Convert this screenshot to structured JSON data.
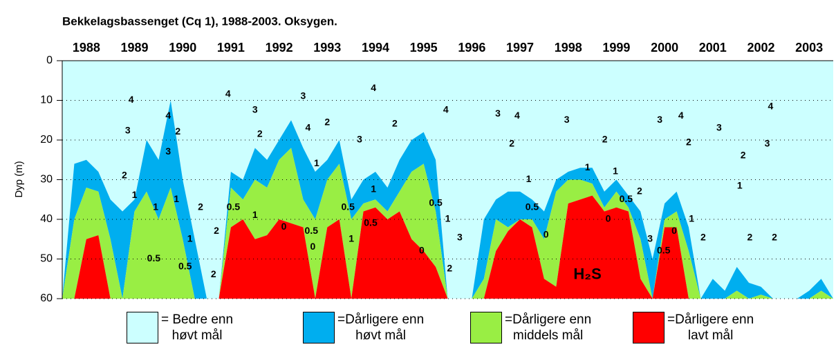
{
  "chart_data": {
    "type": "stacked-area",
    "title": "Bekkelagsbassenget (Cq 1), 1988-2003. Oksygen.",
    "y_label": "Dyp (m)",
    "categories": [
      "1988",
      "1989",
      "1990",
      "1991",
      "1992",
      "1993",
      "1994",
      "1995",
      "1996",
      "1997",
      "1998",
      "1999",
      "2000",
      "2001",
      "2002",
      "2003"
    ],
    "xlim": [
      1988,
      2004
    ],
    "ylim": [
      0,
      60
    ],
    "y_inverted": true,
    "yticks": [
      0,
      10,
      20,
      30,
      40,
      50,
      60
    ],
    "grid": true,
    "x": [
      1988,
      1988.25,
      1988.5,
      1988.75,
      1989,
      1989.25,
      1989.5,
      1989.75,
      1990,
      1990.25,
      1990.5,
      1990.75,
      1991,
      1991.25,
      1991.5,
      1991.75,
      1992,
      1992.25,
      1992.5,
      1992.75,
      1993,
      1993.25,
      1993.5,
      1993.75,
      1994,
      1994.25,
      1994.5,
      1994.75,
      1995,
      1995.25,
      1995.5,
      1995.75,
      1996,
      1996.25,
      1996.5,
      1996.75,
      1997,
      1997.25,
      1997.5,
      1997.75,
      1998,
      1998.25,
      1998.5,
      1998.75,
      1999,
      1999.25,
      1999.5,
      1999.75,
      2000,
      2000.25,
      2000.5,
      2000.75,
      2001,
      2001.25,
      2001.5,
      2001.75,
      2002,
      2002.25,
      2002.5,
      2002.75,
      2003,
      2003.25,
      2003.5,
      2003.75,
      2004
    ],
    "series": [
      {
        "name": "= Bedre enn\nhøvt mål",
        "color": "#ccffff",
        "values": [
          60,
          26,
          25,
          28,
          35,
          38,
          35,
          20,
          25,
          10,
          30,
          45,
          60,
          60,
          28,
          30,
          22,
          25,
          20,
          15,
          22,
          28,
          25,
          20,
          35,
          30,
          28,
          32,
          25,
          20,
          18,
          25,
          60,
          60,
          60,
          40,
          35,
          33,
          33,
          35,
          38,
          30,
          28,
          27,
          27,
          33,
          30,
          34,
          38,
          50,
          36,
          33,
          42,
          60,
          55,
          58,
          52,
          56,
          57,
          60,
          60,
          60,
          58,
          55,
          60
        ]
      },
      {
        "name": "=Dårligere enn\nhøvt mål",
        "color": "#00aeef",
        "values": [
          0,
          14,
          7,
          5,
          10,
          22,
          3,
          13,
          15,
          22,
          15,
          15,
          0,
          0,
          4,
          5,
          8,
          7,
          5,
          7,
          13,
          12,
          5,
          6,
          5,
          6,
          7,
          6,
          8,
          8,
          8,
          13,
          0,
          0,
          0,
          15,
          5,
          9,
          7,
          5,
          7,
          3,
          2,
          3,
          4,
          4,
          3,
          3,
          7,
          10,
          4,
          5,
          6,
          0,
          5,
          2,
          6,
          4,
          2,
          0,
          0,
          0,
          2,
          3,
          0
        ]
      },
      {
        "name": "=Dårligere enn\nmiddels mål",
        "color": "#99ee44",
        "values": [
          0,
          20,
          13,
          11,
          15,
          0,
          22,
          27,
          20,
          28,
          15,
          0,
          0,
          0,
          10,
          5,
          15,
          12,
          15,
          19,
          7,
          20,
          12,
          14,
          20,
          2,
          2,
          2,
          5,
          17,
          22,
          14,
          0,
          0,
          0,
          5,
          8,
          1,
          0,
          2,
          10,
          24,
          6,
          5,
          3,
          1,
          4,
          1,
          10,
          0,
          2,
          4,
          12,
          0,
          0,
          0,
          2,
          0,
          1,
          0,
          0,
          0,
          0,
          2,
          0
        ]
      },
      {
        "name": "=Dårligere enn\nlavt mål",
        "color": "#ff0000",
        "values": [
          0,
          0,
          15,
          16,
          0,
          0,
          0,
          0,
          0,
          0,
          0,
          0,
          0,
          0,
          18,
          20,
          15,
          16,
          20,
          19,
          18,
          0,
          18,
          20,
          0,
          22,
          23,
          20,
          22,
          15,
          12,
          8,
          0,
          0,
          0,
          0,
          12,
          17,
          20,
          18,
          5,
          3,
          24,
          25,
          26,
          22,
          23,
          22,
          5,
          0,
          18,
          18,
          0,
          0,
          0,
          0,
          0,
          0,
          0,
          0,
          0,
          0,
          0,
          0,
          0
        ]
      }
    ],
    "annotations": [
      {
        "text": "4",
        "x": 1989.43,
        "y": 10
      },
      {
        "text": "3",
        "x": 1989.36,
        "y": 17.7
      },
      {
        "text": "2",
        "x": 1989.29,
        "y": 29
      },
      {
        "text": "1",
        "x": 1989.5,
        "y": 34
      },
      {
        "text": "1",
        "x": 1989.94,
        "y": 37
      },
      {
        "text": "0.5",
        "x": 1989.9,
        "y": 50
      },
      {
        "text": "4",
        "x": 1990.2,
        "y": 14
      },
      {
        "text": "3",
        "x": 1990.2,
        "y": 23
      },
      {
        "text": "2",
        "x": 1990.4,
        "y": 18
      },
      {
        "text": "1",
        "x": 1990.37,
        "y": 35
      },
      {
        "text": "0.5",
        "x": 1990.55,
        "y": 52
      },
      {
        "text": "1",
        "x": 1990.65,
        "y": 45
      },
      {
        "text": "2",
        "x": 1990.87,
        "y": 37
      },
      {
        "text": "2",
        "x": 1991.2,
        "y": 43
      },
      {
        "text": "2",
        "x": 1991.14,
        "y": 54
      },
      {
        "text": "4",
        "x": 1991.44,
        "y": 8.5
      },
      {
        "text": "3",
        "x": 1992.0,
        "y": 12.5
      },
      {
        "text": "2",
        "x": 1992.1,
        "y": 18.6
      },
      {
        "text": "0.5",
        "x": 1991.55,
        "y": 37
      },
      {
        "text": "1",
        "x": 1992.0,
        "y": 39
      },
      {
        "text": "0",
        "x": 1992.6,
        "y": 42
      },
      {
        "text": "0.5",
        "x": 1993.17,
        "y": 43
      },
      {
        "text": "0",
        "x": 1993.2,
        "y": 47
      },
      {
        "text": "3",
        "x": 1993.0,
        "y": 9
      },
      {
        "text": "4",
        "x": 1993.1,
        "y": 17
      },
      {
        "text": "2",
        "x": 1993.5,
        "y": 15.6
      },
      {
        "text": "1",
        "x": 1993.28,
        "y": 26
      },
      {
        "text": "0.5",
        "x": 1993.93,
        "y": 37
      },
      {
        "text": "1",
        "x": 1994.0,
        "y": 45
      },
      {
        "text": "4",
        "x": 1994.46,
        "y": 7
      },
      {
        "text": "3",
        "x": 1994.17,
        "y": 20
      },
      {
        "text": "1",
        "x": 1994.46,
        "y": 32.5
      },
      {
        "text": "0.5",
        "x": 1994.4,
        "y": 41
      },
      {
        "text": "2",
        "x": 1994.9,
        "y": 16
      },
      {
        "text": "0",
        "x": 1995.46,
        "y": 48
      },
      {
        "text": "0.5",
        "x": 1995.75,
        "y": 36
      },
      {
        "text": "1",
        "x": 1996.0,
        "y": 40
      },
      {
        "text": "4",
        "x": 1995.96,
        "y": 12.5
      },
      {
        "text": "2",
        "x": 1996.04,
        "y": 52.5
      },
      {
        "text": "3",
        "x": 1996.25,
        "y": 44.7
      },
      {
        "text": "3",
        "x": 1997.04,
        "y": 13.4
      },
      {
        "text": "4",
        "x": 1997.44,
        "y": 14
      },
      {
        "text": "2",
        "x": 1997.33,
        "y": 21
      },
      {
        "text": "1",
        "x": 1997.68,
        "y": 30
      },
      {
        "text": "0.5",
        "x": 1997.75,
        "y": 37
      },
      {
        "text": "0",
        "x": 1998.04,
        "y": 44
      },
      {
        "text": "3",
        "x": 1998.47,
        "y": 15
      },
      {
        "text": "1",
        "x": 1998.9,
        "y": 27
      },
      {
        "text": "2",
        "x": 1999.26,
        "y": 20
      },
      {
        "text": "1",
        "x": 1999.48,
        "y": 28
      },
      {
        "text": "0.5",
        "x": 1999.7,
        "y": 35
      },
      {
        "text": "0",
        "x": 1999.33,
        "y": 40
      },
      {
        "text": "2",
        "x": 1999.98,
        "y": 33
      },
      {
        "text": "3",
        "x": 2000.4,
        "y": 15
      },
      {
        "text": "4",
        "x": 2000.84,
        "y": 14
      },
      {
        "text": "2",
        "x": 2001.0,
        "y": 20.7
      },
      {
        "text": "3",
        "x": 2000.2,
        "y": 45
      },
      {
        "text": "0.5",
        "x": 2000.48,
        "y": 48
      },
      {
        "text": "0",
        "x": 2000.7,
        "y": 43
      },
      {
        "text": "1",
        "x": 2001.06,
        "y": 40
      },
      {
        "text": "2",
        "x": 2001.3,
        "y": 44.7
      },
      {
        "text": "3",
        "x": 2001.63,
        "y": 17
      },
      {
        "text": "1",
        "x": 2002.06,
        "y": 31.6
      },
      {
        "text": "2",
        "x": 2002.13,
        "y": 24
      },
      {
        "text": "2",
        "x": 2002.27,
        "y": 44.7
      },
      {
        "text": "3",
        "x": 2002.63,
        "y": 21
      },
      {
        "text": "4",
        "x": 2002.7,
        "y": 11.6
      },
      {
        "text": "2",
        "x": 2002.78,
        "y": 44.7
      },
      {
        "text": "H₂S",
        "x": 1998.9,
        "y": 54
      }
    ]
  }
}
